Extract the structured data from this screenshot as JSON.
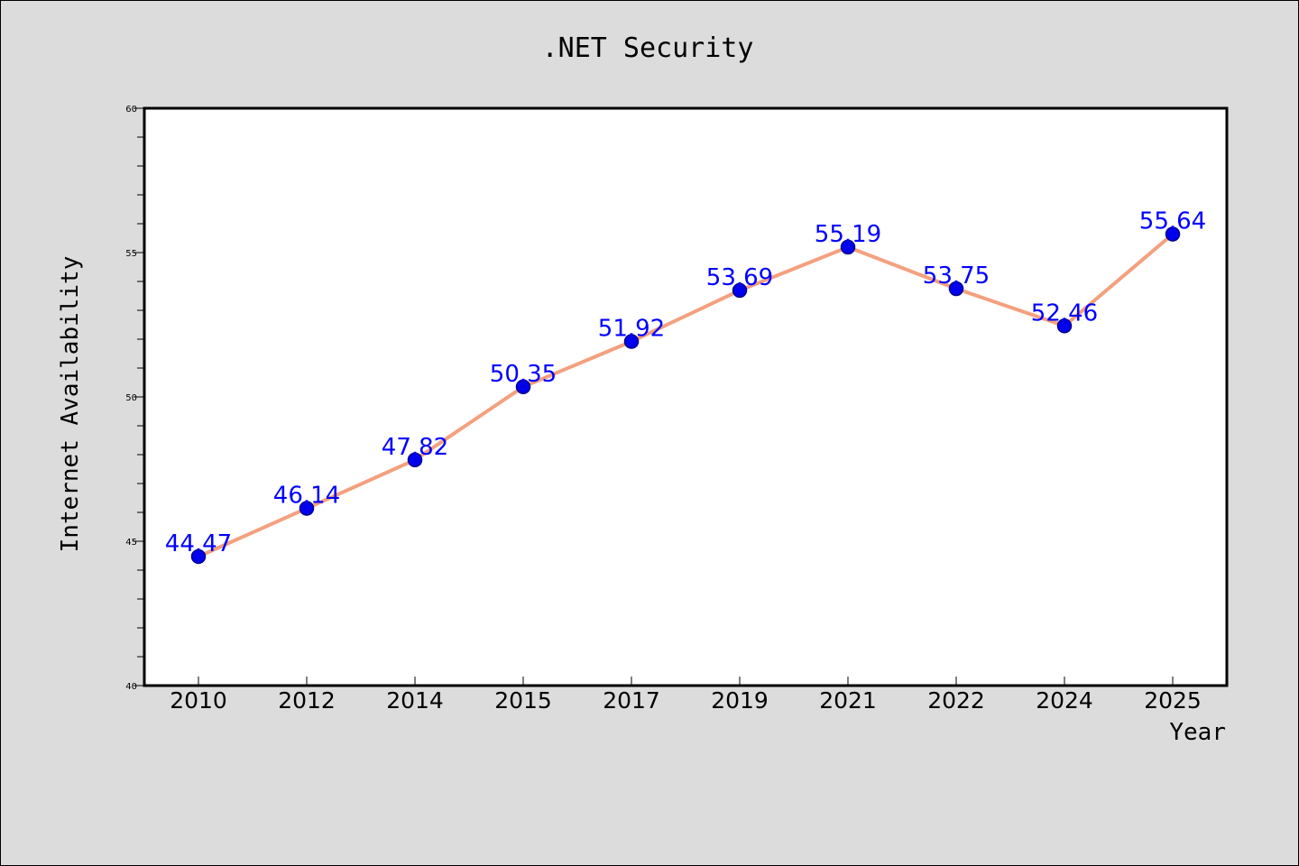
{
  "chart_data": {
    "type": "line",
    "title": ".NET Security",
    "xlabel": "Year",
    "ylabel": "Internet Availability",
    "categories": [
      "2010",
      "2012",
      "2014",
      "2015",
      "2017",
      "2019",
      "2021",
      "2022",
      "2024",
      "2025"
    ],
    "series": [
      {
        "values": [
          44.47,
          46.14,
          47.82,
          50.35,
          51.92,
          53.69,
          55.19,
          53.75,
          52.46,
          55.64
        ],
        "data_labels": [
          "44.47",
          "46.14",
          "47.82",
          "50.35",
          "51.92",
          "53.69",
          "55.19",
          "53.75",
          "52.46",
          "55.64"
        ]
      }
    ],
    "ylim": [
      40,
      60
    ],
    "yticks": [
      "40",
      "45",
      "50",
      "55",
      "60"
    ],
    "grid": false,
    "colors": {
      "line": "#f4a07e",
      "marker": "#0000ee",
      "marker_edge": "#00008b",
      "data_label": "#0000ff",
      "background": "#dcdcdc",
      "plot_background": "#ffffff"
    }
  }
}
